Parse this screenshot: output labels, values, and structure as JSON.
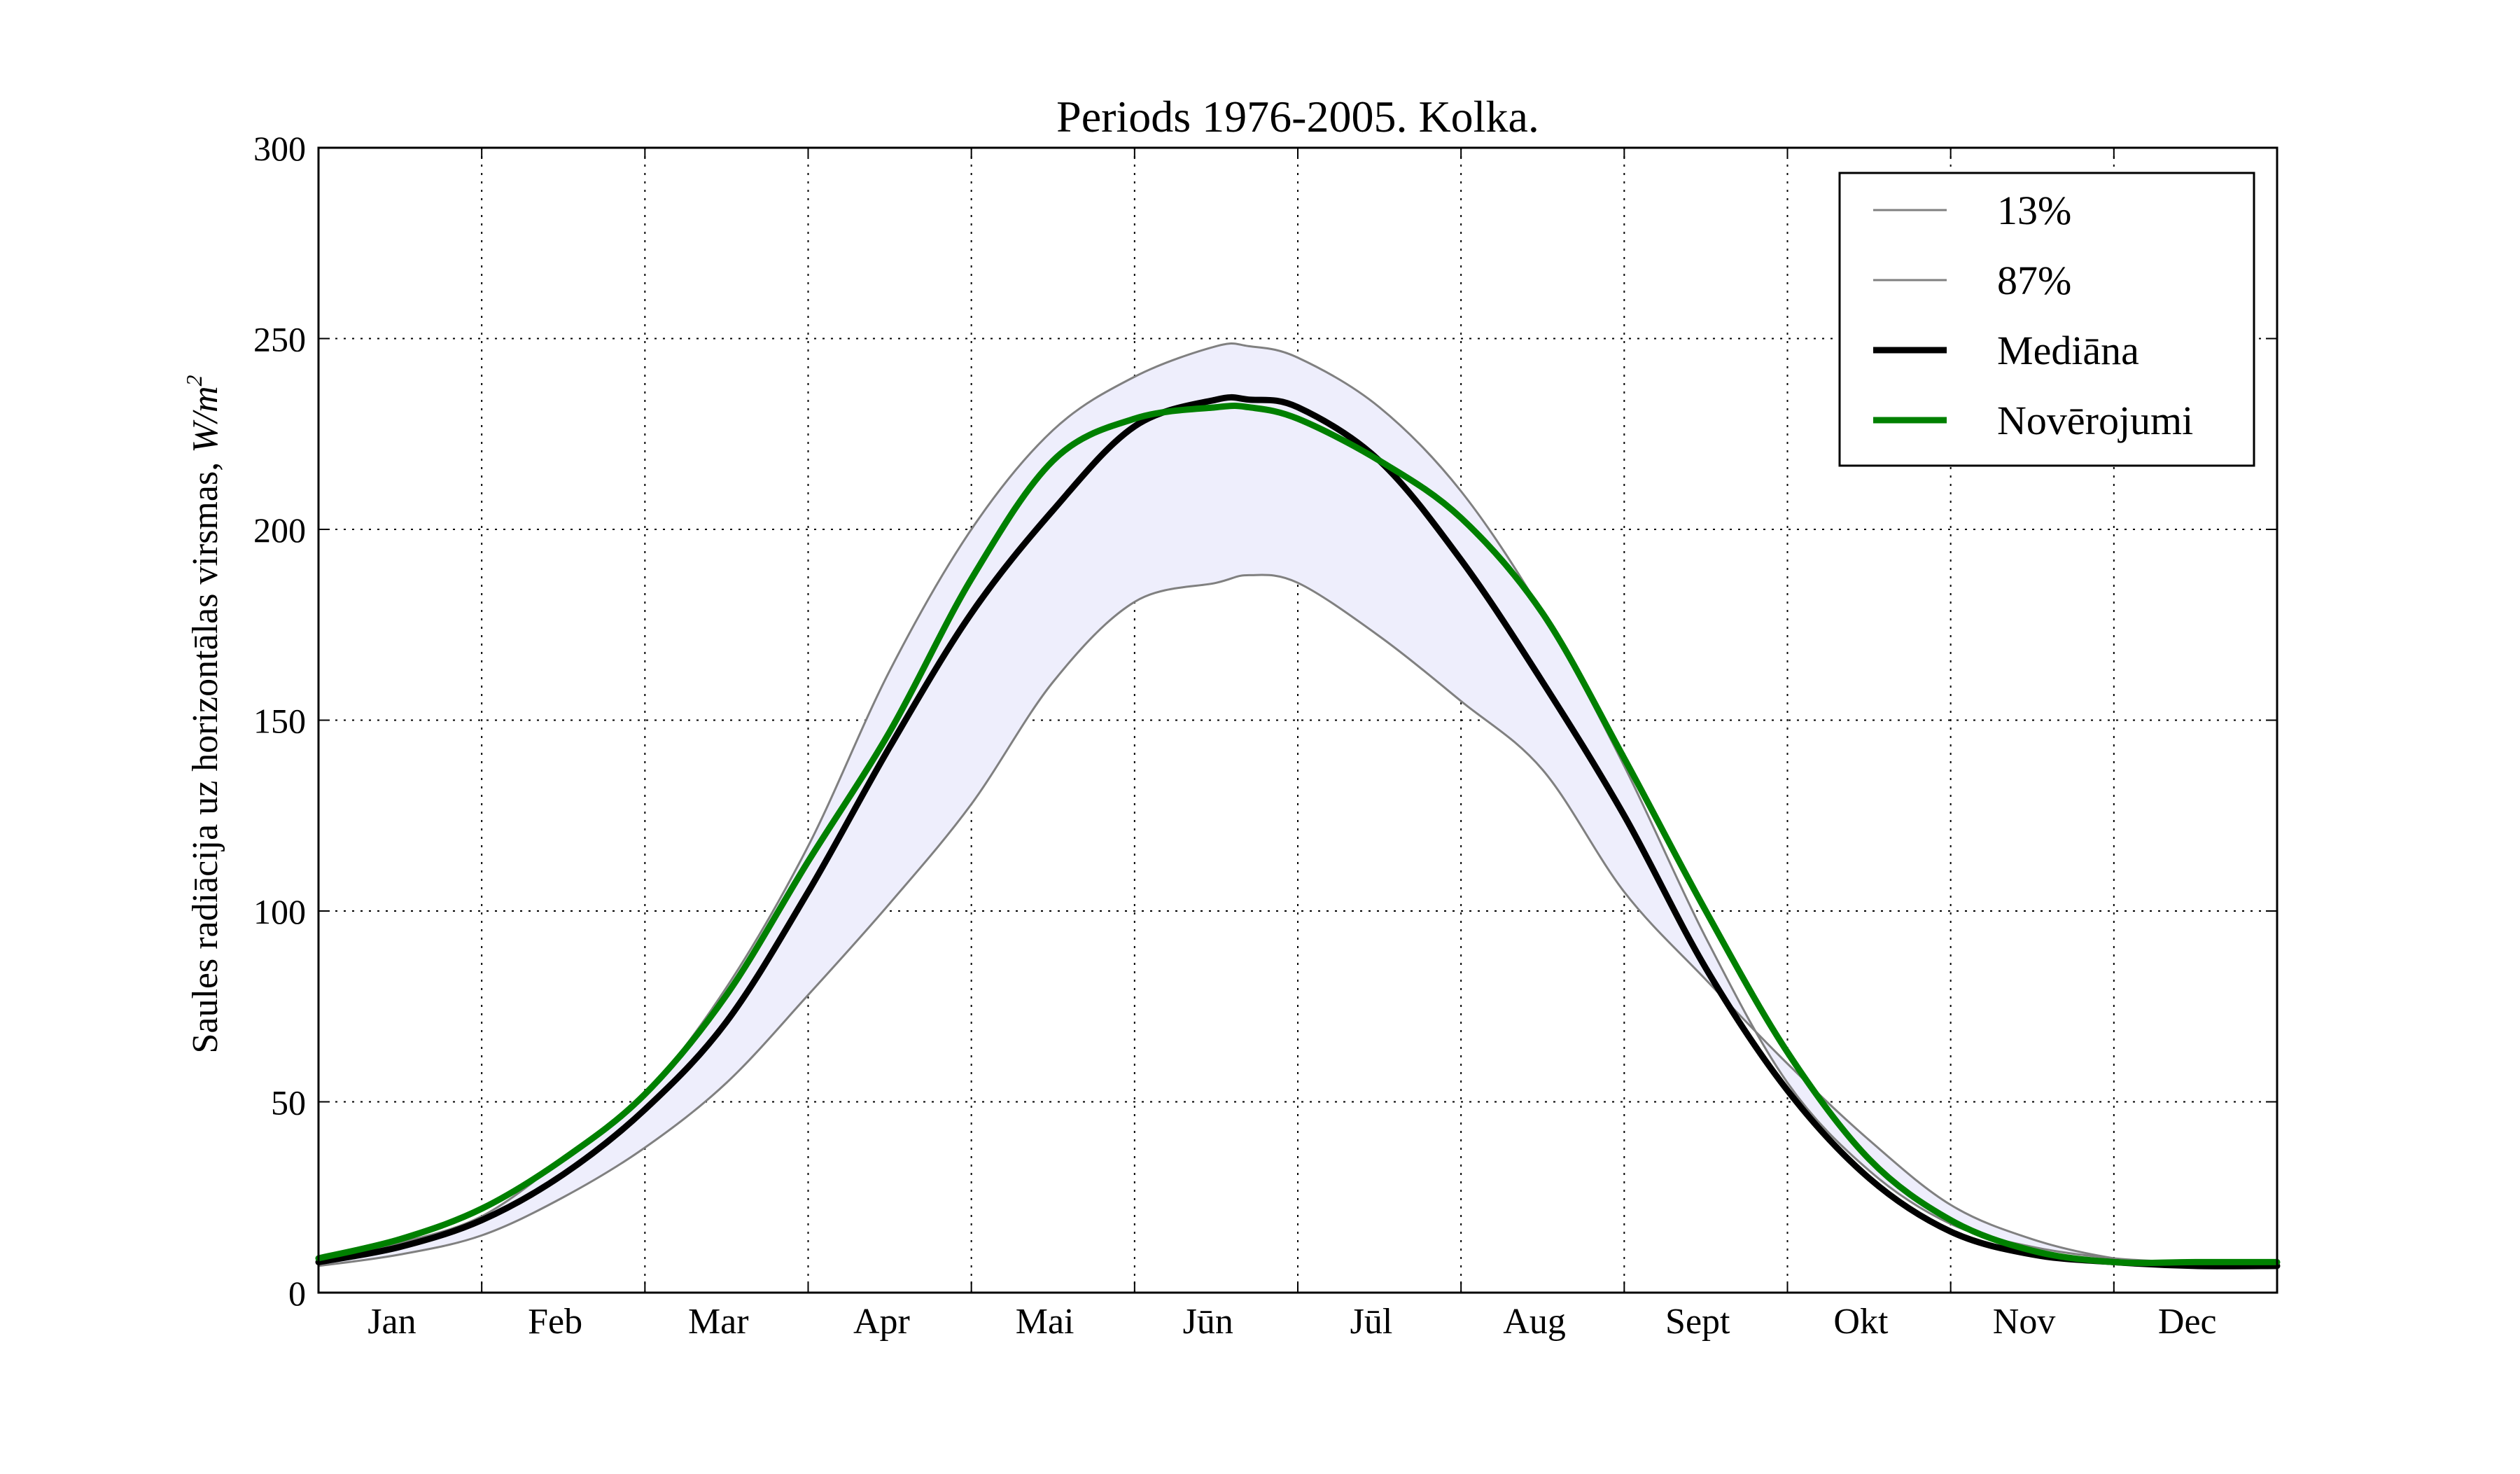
{
  "chart_data": {
    "type": "line",
    "title": "Periods 1976-2005. Kolka.",
    "ylabel": "Saules radiācija uz horizontālas virsmas,",
    "ylabel_unit": "W/m",
    "ylabel_unit_exp": "2",
    "xlabel": "",
    "ylim": [
      0,
      300
    ],
    "xlim": [
      0,
      12
    ],
    "yticks": [
      0,
      50,
      100,
      150,
      200,
      250,
      300
    ],
    "month_boundaries": [
      1,
      2,
      3,
      4,
      5,
      6,
      7,
      8,
      9,
      10,
      11
    ],
    "months": [
      "Jan",
      "Feb",
      "Mar",
      "Apr",
      "Mai",
      "Jūn",
      "Jūl",
      "Aug",
      "Sept",
      "Okt",
      "Nov",
      "Dec"
    ],
    "grid": true,
    "legend_position": "top-right",
    "band": {
      "between": [
        "13%",
        "87%"
      ],
      "color": "#eeeefc"
    },
    "x": [
      0,
      0.5,
      1,
      1.5,
      2,
      2.5,
      3,
      3.5,
      4,
      4.5,
      5,
      5.5,
      5.7,
      6,
      6.5,
      7,
      7.5,
      8,
      8.5,
      9,
      9.5,
      10,
      10.5,
      11,
      11.5,
      12
    ],
    "series": [
      {
        "name": "13%",
        "color": "#808080",
        "width": 3,
        "values": [
          7,
          10,
          15,
          25,
          38,
          55,
          78,
          102,
          128,
          160,
          181,
          186,
          188,
          186,
          172,
          155,
          137,
          105,
          82,
          60,
          40,
          23,
          14,
          9,
          7,
          7
        ]
      },
      {
        "name": "87%",
        "color": "#808080",
        "width": 3,
        "values": [
          8,
          13,
          20,
          35,
          52,
          80,
          117,
          163,
          200,
          226,
          240,
          248,
          248,
          245,
          232,
          210,
          178,
          138,
          93,
          55,
          32,
          18,
          12,
          9,
          8,
          8
        ]
      },
      {
        "name": "Mediāna",
        "color": "#000000",
        "width": 9,
        "values": [
          8,
          12,
          19,
          31,
          48,
          71,
          105,
          143,
          178,
          205,
          227,
          234,
          234,
          232,
          218,
          192,
          160,
          125,
          85,
          53,
          30,
          16,
          10,
          8,
          7,
          7
        ]
      },
      {
        "name": "Novērojumi",
        "color": "#008000",
        "width": 9,
        "values": [
          9,
          14,
          22,
          35,
          52,
          78,
          113,
          147,
          187,
          218,
          229,
          232,
          232,
          229,
          218,
          203,
          178,
          140,
          100,
          63,
          35,
          19,
          11,
          8,
          8,
          8
        ]
      }
    ]
  }
}
